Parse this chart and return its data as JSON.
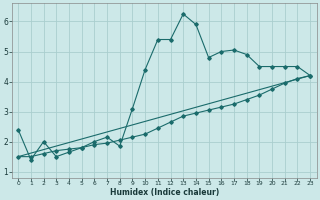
{
  "xlabel": "Humidex (Indice chaleur)",
  "bg_color": "#cce8e8",
  "grid_color": "#aacece",
  "line_color": "#1a6b6b",
  "xlim": [
    -0.5,
    23.5
  ],
  "ylim": [
    0.8,
    6.6
  ],
  "xticks": [
    0,
    1,
    2,
    3,
    4,
    5,
    6,
    7,
    8,
    9,
    10,
    11,
    12,
    13,
    14,
    15,
    16,
    17,
    18,
    19,
    20,
    21,
    22,
    23
  ],
  "yticks": [
    1,
    2,
    3,
    4,
    5,
    6
  ],
  "series1_x": [
    0,
    1,
    2,
    3,
    4,
    5,
    6,
    7,
    8,
    9,
    10,
    11,
    12,
    13,
    14,
    15,
    16,
    17,
    18,
    19,
    20,
    21,
    22,
    23
  ],
  "series1_y": [
    2.4,
    1.4,
    2.0,
    1.5,
    1.65,
    1.8,
    2.0,
    2.15,
    1.85,
    3.1,
    4.4,
    5.4,
    5.4,
    6.25,
    5.9,
    4.8,
    5.0,
    5.05,
    4.9,
    4.5,
    4.5,
    4.5,
    4.5,
    4.2
  ],
  "series2_x": [
    0,
    1,
    2,
    3,
    4,
    5,
    6,
    7,
    8,
    9,
    10,
    11,
    12,
    13,
    14,
    15,
    16,
    17,
    18,
    19,
    20,
    21,
    22,
    23
  ],
  "series2_y": [
    1.5,
    1.5,
    1.6,
    1.7,
    1.75,
    1.8,
    1.9,
    1.95,
    2.05,
    2.15,
    2.25,
    2.45,
    2.65,
    2.85,
    2.95,
    3.05,
    3.15,
    3.25,
    3.4,
    3.55,
    3.75,
    3.95,
    4.1,
    4.2
  ],
  "series3_x": [
    0,
    23
  ],
  "series3_y": [
    1.5,
    4.2
  ]
}
